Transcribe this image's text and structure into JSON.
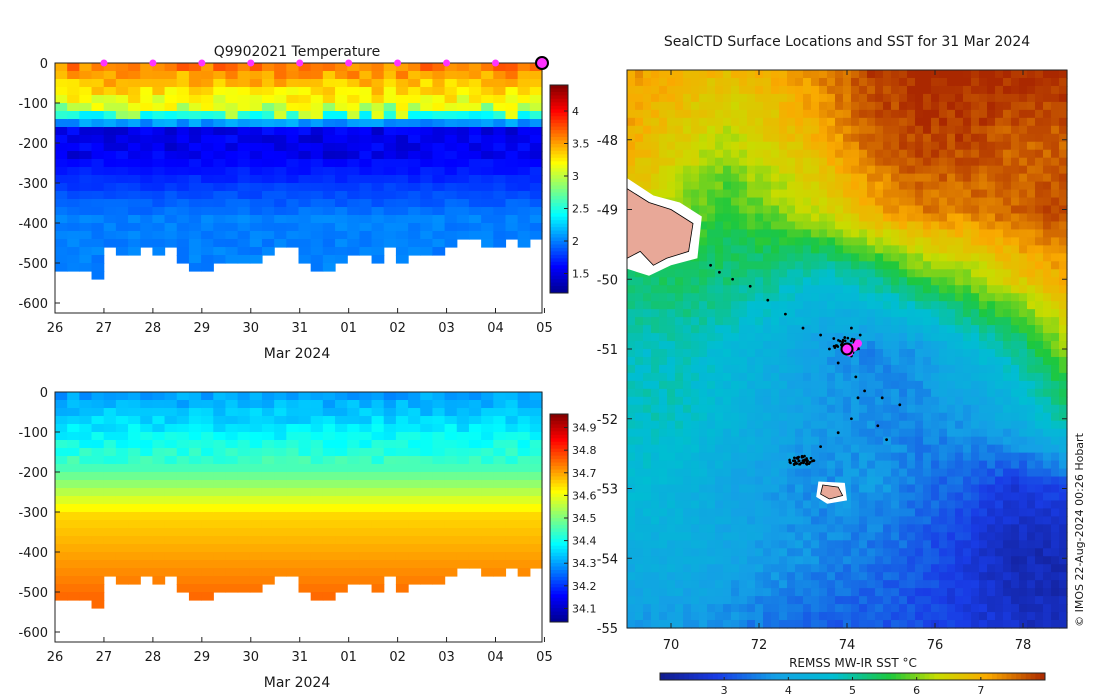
{
  "chart_data": [
    {
      "type": "heatmap",
      "title": "Q9902021  Temperature",
      "xlabel": "Mar 2024",
      "ylabel": "",
      "x_tick_labels": [
        "26",
        "27",
        "28",
        "29",
        "30",
        "31",
        "01",
        "02",
        "03",
        "04",
        "05"
      ],
      "y_tick_labels": [
        "0",
        "-100",
        "-200",
        "-300",
        "-400",
        "-500",
        "-600"
      ],
      "y_ticks": [
        0,
        -100,
        -200,
        -300,
        -400,
        -500,
        -600
      ],
      "ylim": [
        -625,
        0
      ],
      "xlim_days": [
        0,
        9.95
      ],
      "surface_markers_days": [
        1,
        2,
        3,
        4,
        5,
        6,
        7,
        8,
        9
      ],
      "current_position_day": 9.95,
      "colorbar": {
        "min": 1.2,
        "max": 4.4,
        "tick_labels": [
          "1.5",
          "2",
          "2.5",
          "3",
          "3.5",
          "4"
        ],
        "ticks": [
          1.5,
          2,
          2.5,
          3,
          3.5,
          4
        ]
      },
      "profile_max_depths": [
        510,
        455,
        465,
        505,
        500,
        470,
        505,
        480,
        470,
        450,
        440,
        435
      ],
      "layers": {
        "surface_value": 3.6,
        "cold_core_value": 1.4,
        "cold_core_depth": [
          160,
          230
        ],
        "deep_value": 2.0
      }
    },
    {
      "type": "heatmap",
      "title": "",
      "xlabel": "Mar 2024",
      "ylabel": "",
      "x_tick_labels": [
        "26",
        "27",
        "28",
        "29",
        "30",
        "31",
        "01",
        "02",
        "03",
        "04",
        "05"
      ],
      "y_tick_labels": [
        "0",
        "-100",
        "-200",
        "-300",
        "-400",
        "-500",
        "-600"
      ],
      "y_ticks": [
        0,
        -100,
        -200,
        -300,
        -400,
        -500,
        -600
      ],
      "ylim": [
        -625,
        0
      ],
      "xlim_days": [
        0,
        9.95
      ],
      "colorbar": {
        "min": 34.04,
        "max": 34.96,
        "tick_labels": [
          "34.1",
          "34.2",
          "34.3",
          "34.4",
          "34.5",
          "34.6",
          "34.7",
          "34.8",
          "34.9"
        ],
        "ticks": [
          34.1,
          34.2,
          34.3,
          34.4,
          34.5,
          34.6,
          34.7,
          34.8,
          34.9
        ]
      },
      "profile_max_depths": [
        510,
        455,
        465,
        505,
        500,
        470,
        505,
        480,
        470,
        450,
        440,
        435
      ],
      "layers": {
        "surface_value": 34.3,
        "halocline_depth": [
          180,
          300
        ],
        "deep_value": 34.75
      }
    },
    {
      "type": "heatmap",
      "title": "SealCTD Surface Locations and SST for 31 Mar 2024",
      "xlabel": "REMSS MW-IR SST °C",
      "ylabel": "",
      "x_tick_labels": [
        "70",
        "72",
        "74",
        "76",
        "78"
      ],
      "x_ticks": [
        70,
        72,
        74,
        76,
        78
      ],
      "xlim": [
        69,
        79
      ],
      "y_tick_labels": [
        "-48",
        "-49",
        "-50",
        "-51",
        "-52",
        "-53",
        "-54",
        "-55"
      ],
      "y_ticks": [
        -48,
        -49,
        -50,
        -51,
        -52,
        -53,
        -54,
        -55
      ],
      "ylim": [
        -55,
        -47
      ],
      "colorbar": {
        "min": 2.0,
        "max": 8.0,
        "tick_labels": [
          "3",
          "4",
          "5",
          "6",
          "7"
        ],
        "ticks": [
          3,
          4,
          5,
          6,
          7
        ]
      },
      "sst_field": [
        [
          7.2,
          7.0,
          6.8,
          7.0,
          7.4,
          7.8,
          8.0,
          8.0,
          8.0,
          8.0
        ],
        [
          7.0,
          6.6,
          6.2,
          6.6,
          7.0,
          7.6,
          7.8,
          7.8,
          7.6,
          7.6
        ],
        [
          6.6,
          6.0,
          5.6,
          6.0,
          6.4,
          7.0,
          7.4,
          7.4,
          7.6,
          7.8
        ],
        [
          5.2,
          5.4,
          5.2,
          5.0,
          4.6,
          5.0,
          5.6,
          6.0,
          6.6,
          7.0
        ],
        [
          4.8,
          4.8,
          4.6,
          4.2,
          3.8,
          3.6,
          3.8,
          4.4,
          5.0,
          6.0
        ],
        [
          4.8,
          4.8,
          4.4,
          4.0,
          3.8,
          3.6,
          3.6,
          3.8,
          4.2,
          5.0
        ],
        [
          4.6,
          4.4,
          4.0,
          3.8,
          3.6,
          3.8,
          3.4,
          3.2,
          2.8,
          3.0
        ],
        [
          4.2,
          4.2,
          4.0,
          3.8,
          3.6,
          3.4,
          3.2,
          2.8,
          2.4,
          2.4
        ],
        [
          3.8,
          3.8,
          3.6,
          3.4,
          3.2,
          3.2,
          3.0,
          2.8,
          2.6,
          2.4
        ]
      ],
      "track_points": [
        [
          70.9,
          -49.8
        ],
        [
          71.1,
          -49.9
        ],
        [
          71.4,
          -50.0
        ],
        [
          71.8,
          -50.1
        ],
        [
          72.2,
          -50.3
        ],
        [
          72.6,
          -50.5
        ],
        [
          73.0,
          -50.7
        ],
        [
          73.4,
          -50.8
        ],
        [
          73.7,
          -50.85
        ],
        [
          73.9,
          -50.9
        ],
        [
          74.05,
          -50.95
        ],
        [
          74.1,
          -51.1
        ],
        [
          74.2,
          -51.4
        ],
        [
          74.25,
          -51.7
        ],
        [
          74.1,
          -52.0
        ],
        [
          73.8,
          -52.2
        ],
        [
          73.4,
          -52.4
        ],
        [
          73.0,
          -52.6
        ],
        [
          72.8,
          -52.65
        ],
        [
          72.9,
          -52.55
        ],
        [
          73.1,
          -52.6
        ],
        [
          74.4,
          -51.6
        ],
        [
          74.8,
          -51.7
        ],
        [
          75.2,
          -51.8
        ],
        [
          74.7,
          -52.1
        ],
        [
          74.9,
          -52.3
        ],
        [
          73.6,
          -51.0
        ],
        [
          73.8,
          -51.2
        ],
        [
          74.1,
          -50.7
        ],
        [
          74.3,
          -50.8
        ]
      ],
      "latest_location": [
        74.0,
        -51.0
      ],
      "recent_locations": [
        [
          74.25,
          -50.92
        ],
        [
          74.15,
          -50.98
        ],
        [
          74.05,
          -51.05
        ]
      ],
      "land_fill_color": "#e8a898",
      "side_credit": "© IMOS 22-Aug-2024 00:26 Hobart"
    }
  ]
}
